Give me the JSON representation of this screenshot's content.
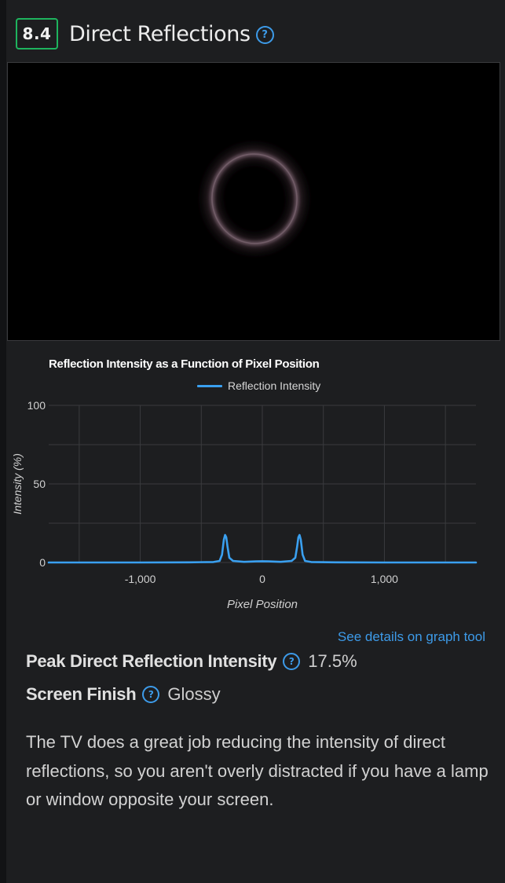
{
  "section": {
    "score": "8.4",
    "title": "Direct Reflections",
    "help_glyph": "?"
  },
  "photo": {
    "description_icon": "reflection-ring-image"
  },
  "chart_data": {
    "type": "line",
    "title": "Reflection Intensity as a Function of Pixel Position",
    "xlabel": "Pixel Position",
    "ylabel": "Intensity (%)",
    "xlim": [
      -1750,
      1750
    ],
    "ylim": [
      0,
      100
    ],
    "x_ticks": [
      {
        "value": -1000,
        "label": "-1,000"
      },
      {
        "value": 0,
        "label": "0"
      },
      {
        "value": 1000,
        "label": "1,000"
      }
    ],
    "y_ticks": [
      {
        "value": 0,
        "label": "0"
      },
      {
        "value": 50,
        "label": "50"
      },
      {
        "value": 100,
        "label": "100"
      }
    ],
    "grid": true,
    "legend": "top",
    "series": [
      {
        "name": "Reflection Intensity",
        "color": "#3aa0f0",
        "x": [
          -1750,
          -1000,
          -600,
          -400,
          -350,
          -330,
          -315,
          -305,
          -295,
          -285,
          -270,
          -240,
          -150,
          -50,
          0,
          50,
          150,
          240,
          270,
          285,
          295,
          305,
          315,
          330,
          350,
          400,
          600,
          1000,
          1750
        ],
        "y": [
          0,
          0,
          0.1,
          0.3,
          1.0,
          5.0,
          14.5,
          17.5,
          16.0,
          10.0,
          3.0,
          1.0,
          0.4,
          0.7,
          0.8,
          0.7,
          0.4,
          1.0,
          3.0,
          10.0,
          16.0,
          17.5,
          14.5,
          5.0,
          1.0,
          0.3,
          0.1,
          0,
          0
        ]
      }
    ]
  },
  "graph_link": "See details on graph tool",
  "stats": [
    {
      "label": "Peak Direct Reflection Intensity",
      "value": "17.5%"
    },
    {
      "label": "Screen Finish",
      "value": "Glossy"
    }
  ],
  "description": "The TV does a great job reducing the intensity of direct reflections, so you aren't overly distracted if you have a lamp or window opposite your screen."
}
